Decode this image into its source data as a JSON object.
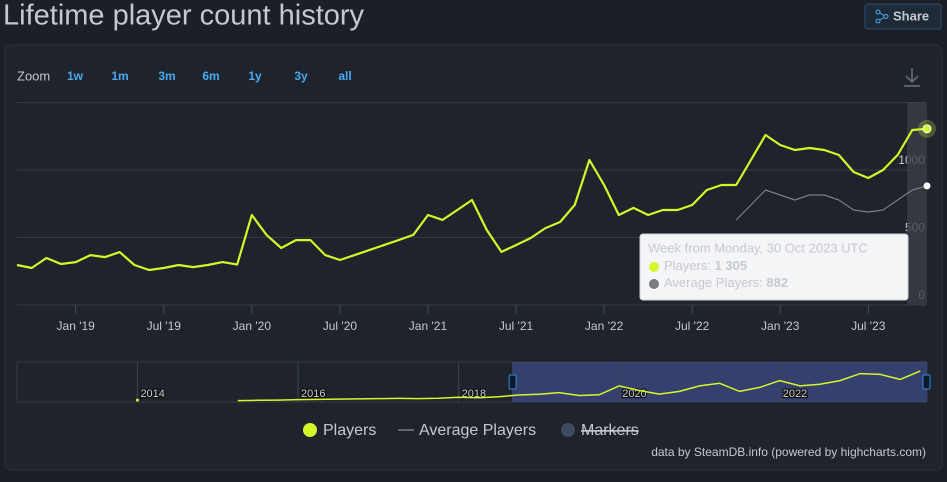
{
  "page": {
    "title": "Lifetime player count history",
    "share": "Share",
    "zoom_label": "Zoom",
    "zoom_buttons": [
      "1w",
      "1m",
      "3m",
      "6m",
      "1y",
      "3y",
      "all"
    ],
    "credits": "data by SteamDB.info (powered by highcharts.com)"
  },
  "chart_data": {
    "type": "line",
    "x": [
      "2018-09",
      "2018-10",
      "2018-11",
      "2018-12",
      "2019-01",
      "2019-02",
      "2019-03",
      "2019-04",
      "2019-05",
      "2019-06",
      "2019-07",
      "2019-08",
      "2019-09",
      "2019-10",
      "2019-11",
      "2019-12",
      "2020-01",
      "2020-02",
      "2020-03",
      "2020-04",
      "2020-05",
      "2020-06",
      "2020-07",
      "2020-08",
      "2020-09",
      "2020-10",
      "2020-11",
      "2020-12",
      "2021-01",
      "2021-02",
      "2021-03",
      "2021-04",
      "2021-05",
      "2021-06",
      "2021-07",
      "2021-08",
      "2021-09",
      "2021-10",
      "2021-11",
      "2021-12",
      "2022-01",
      "2022-02",
      "2022-03",
      "2022-04",
      "2022-05",
      "2022-06",
      "2022-07",
      "2022-08",
      "2022-09",
      "2022-10",
      "2022-11",
      "2022-12",
      "2023-01",
      "2023-02",
      "2023-03",
      "2023-04",
      "2023-05",
      "2023-06",
      "2023-07",
      "2023-08",
      "2023-09",
      "2023-10",
      "2023-11"
    ],
    "series": [
      {
        "name": "Players",
        "color": "#d4f72a",
        "values": [
          296,
          274,
          348,
          304,
          318,
          370,
          355,
          392,
          296,
          259,
          274,
          296,
          281,
          296,
          318,
          300,
          667,
          519,
          422,
          481,
          481,
          370,
          333,
          370,
          407,
          444,
          481,
          519,
          667,
          630,
          704,
          778,
          556,
          393,
          444,
          496,
          570,
          615,
          741,
          1074,
          889,
          667,
          719,
          667,
          704,
          704,
          741,
          852,
          889,
          889,
          1074,
          1259,
          1185,
          1148,
          1163,
          1148,
          1111,
          985,
          941,
          1000,
          1111,
          1296,
          1305
        ]
      },
      {
        "name": "Average Players",
        "color": "#7a7d80",
        "values": [
          null,
          null,
          null,
          null,
          null,
          null,
          null,
          null,
          null,
          null,
          null,
          null,
          null,
          null,
          null,
          null,
          null,
          null,
          null,
          null,
          null,
          null,
          null,
          null,
          null,
          null,
          null,
          null,
          null,
          null,
          null,
          null,
          null,
          null,
          null,
          null,
          null,
          null,
          null,
          null,
          null,
          null,
          null,
          null,
          null,
          null,
          null,
          null,
          null,
          630,
          741,
          852,
          815,
          778,
          815,
          815,
          778,
          704,
          689,
          704,
          778,
          852,
          882
        ]
      },
      {
        "name": "Markers",
        "color": "#3d4b5e",
        "visible": false
      }
    ],
    "xlim": [
      "2018-09",
      "2023-11"
    ],
    "xticks": [
      {
        "value": "2019-01",
        "label": "Jan '19"
      },
      {
        "value": "2019-07",
        "label": "Jul '19"
      },
      {
        "value": "2020-01",
        "label": "Jan '20"
      },
      {
        "value": "2020-07",
        "label": "Jul '20"
      },
      {
        "value": "2021-01",
        "label": "Jan '21"
      },
      {
        "value": "2021-07",
        "label": "Jul '21"
      },
      {
        "value": "2022-01",
        "label": "Jan '22"
      },
      {
        "value": "2022-07",
        "label": "Jul '22"
      },
      {
        "value": "2023-01",
        "label": "Jan '23"
      },
      {
        "value": "2023-07",
        "label": "Jul '23"
      }
    ],
    "ylim": [
      0,
      1500
    ],
    "yticks": [
      0,
      500,
      1000
    ],
    "grid": true,
    "tooltip": {
      "title": "Week from Monday, 30 Oct 2023 UTC",
      "rows": [
        {
          "label": "Players:",
          "value": 1305,
          "value_label": "1 305"
        },
        {
          "label": "Average Players:",
          "value": 882
        }
      ]
    },
    "navigator": {
      "x": [
        "2014-01",
        "2014-04",
        "2014-07",
        "2014-10",
        "2015-01",
        "2015-04",
        "2015-07",
        "2015-10",
        "2016-01",
        "2016-04",
        "2016-07",
        "2016-10",
        "2017-01",
        "2017-04",
        "2017-07",
        "2017-10",
        "2018-01",
        "2018-04",
        "2018-07",
        "2018-10",
        "2019-01",
        "2019-04",
        "2019-07",
        "2019-10",
        "2020-01",
        "2020-04",
        "2020-07",
        "2020-10",
        "2021-01",
        "2021-04",
        "2021-07",
        "2021-10",
        "2022-01",
        "2022-04",
        "2022-07",
        "2022-10",
        "2023-01",
        "2023-04",
        "2023-07",
        "2023-10"
      ],
      "values": [
        80,
        null,
        null,
        null,
        null,
        60,
        70,
        80,
        100,
        110,
        120,
        130,
        140,
        150,
        140,
        160,
        200,
        180,
        220,
        290,
        320,
        390,
        270,
        300,
        670,
        480,
        330,
        440,
        670,
        780,
        440,
        610,
        890,
        670,
        740,
        890,
        1185,
        1150,
        940,
        1296
      ],
      "xlim": [
        "2012-07",
        "2023-11"
      ],
      "ylim": [
        0,
        1500
      ],
      "xticks": [
        {
          "value": "2014-01",
          "label": "2014"
        },
        {
          "value": "2016-01",
          "label": "2016"
        },
        {
          "value": "2018-01",
          "label": "2018"
        },
        {
          "value": "2020-01",
          "label": "2020"
        },
        {
          "value": "2022-01",
          "label": "2022"
        }
      ]
    }
  }
}
